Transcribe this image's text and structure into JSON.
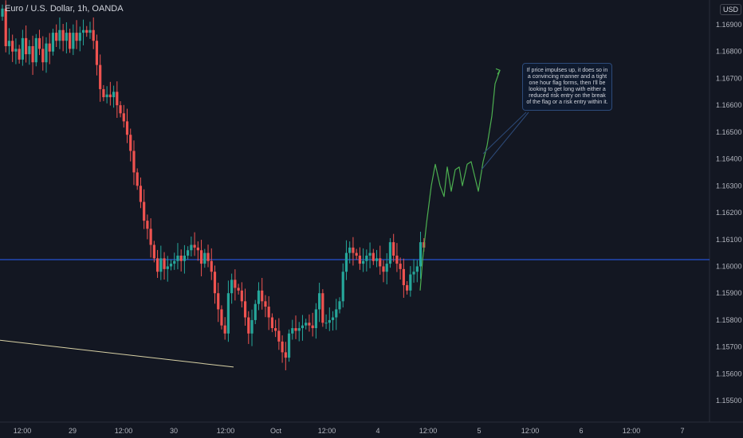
{
  "header": {
    "symbol_title": "Euro / U.S. Dollar, 1h, OANDA",
    "currency": "USD"
  },
  "annotation": {
    "text": "If price impulses up, it does so in a convincing manner and a tight one hour flag forms, then I'll be looking to get long with either a reduced risk entry on the break of the flag or a risk entry within it."
  },
  "colors": {
    "background": "#131722",
    "up": "#26a69a",
    "down": "#ef5350",
    "hline": "#2962ff",
    "projection": "#4caf50",
    "trendline": "#d9d2a6",
    "axis_text": "#b2b5be"
  },
  "chart_data": {
    "type": "candlestick",
    "title": "Euro / U.S. Dollar, 1h, OANDA",
    "price_scale": {
      "ticks": [
        "1.16900",
        "1.16800",
        "1.16700",
        "1.16600",
        "1.16500",
        "1.16400",
        "1.16300",
        "1.16200",
        "1.16100",
        "1.16000",
        "1.15900",
        "1.15800",
        "1.15700",
        "1.15600",
        "1.15500"
      ],
      "currency": "USD"
    },
    "time_axis": {
      "labels": [
        "12:00",
        "29",
        "12:00",
        "30",
        "12:00",
        "Oct",
        "12:00",
        "4",
        "12:00",
        "5",
        "12:00",
        "6",
        "12:00",
        "7"
      ]
    },
    "grid": false,
    "horizontal_level": 1.16025,
    "closes": [
      1.1696,
      1.1682,
      1.1684,
      1.168,
      1.1681,
      1.1677,
      1.1685,
      1.1679,
      1.1682,
      1.1676,
      1.1685,
      1.1681,
      1.1676,
      1.1683,
      1.168,
      1.1687,
      1.1684,
      1.1688,
      1.1684,
      1.1687,
      1.1681,
      1.1687,
      1.1684,
      1.1687,
      1.1688,
      1.1687,
      1.1688,
      1.1684,
      1.1675,
      1.1666,
      1.1663,
      1.1664,
      1.1663,
      1.1665,
      1.166,
      1.1657,
      1.1654,
      1.1649,
      1.1643,
      1.1635,
      1.163,
      1.1624,
      1.1617,
      1.1614,
      1.1608,
      1.1603,
      1.1598,
      1.1603,
      1.1599,
      1.16,
      1.1601,
      1.1602,
      1.1604,
      1.1602,
      1.1604,
      1.1606,
      1.1608,
      1.1607,
      1.1606,
      1.1601,
      1.1605,
      1.1602,
      1.1598,
      1.159,
      1.1584,
      1.1578,
      1.1575,
      1.159,
      1.1595,
      1.1592,
      1.1591,
      1.1587,
      1.1581,
      1.1575,
      1.158,
      1.1586,
      1.1591,
      1.1587,
      1.1585,
      1.1581,
      1.1577,
      1.1576,
      1.1572,
      1.1568,
      1.1566,
      1.1575,
      1.1577,
      1.1576,
      1.1577,
      1.1578,
      1.1579,
      1.1578,
      1.1577,
      1.1584,
      1.159,
      1.1579,
      1.1579,
      1.158,
      1.1581,
      1.1584,
      1.1587,
      1.1598,
      1.1605,
      1.1607,
      1.1605,
      1.1604,
      1.1601,
      1.1602,
      1.1604,
      1.1605,
      1.1602,
      1.1603,
      1.16,
      1.1598,
      1.1601,
      1.1609,
      1.1604,
      1.1601,
      1.1599,
      1.1593,
      1.1591,
      1.1597,
      1.1598,
      1.16,
      1.1609,
      1.1607
    ],
    "projection": {
      "path_prices": [
        1.1591,
        1.1602,
        1.1616,
        1.163,
        1.1638,
        1.163,
        1.1626,
        1.1637,
        1.1628,
        1.1636,
        1.1637,
        1.163,
        1.1638,
        1.1639,
        1.1628,
        1.1639,
        1.1645,
        1.1656,
        1.1668,
        1.1673
      ]
    },
    "trendline": {
      "from_price": 1.15725,
      "to_price": 1.15625
    }
  }
}
